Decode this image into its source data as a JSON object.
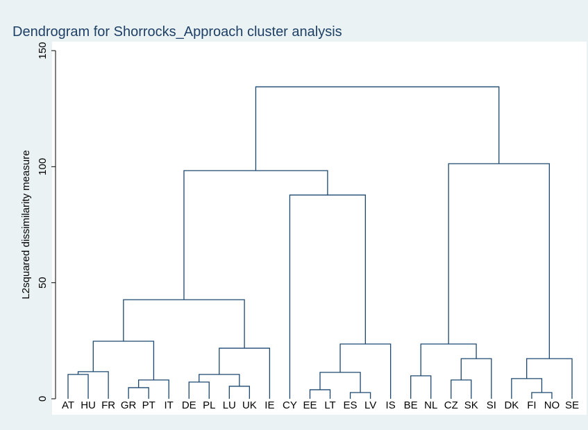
{
  "chart_data": {
    "type": "dendrogram",
    "title": "Dendrogram for Shorrocks_Approach cluster analysis",
    "y_label": "L2squared dissimilarity measure",
    "categories": [
      "AT",
      "HU",
      "FR",
      "GR",
      "PT",
      "IT",
      "DE",
      "PL",
      "LU",
      "UK",
      "IE",
      "CY",
      "EE",
      "LT",
      "ES",
      "LV",
      "IS",
      "BE",
      "NL",
      "CZ",
      "SK",
      "SI",
      "DK",
      "FI",
      "NO",
      "SE"
    ],
    "merges": [
      [
        14,
        15,
        2.7
      ],
      [
        23,
        24,
        2.7
      ],
      [
        12,
        13,
        3.9
      ],
      [
        3,
        4,
        4.8
      ],
      [
        8,
        9,
        5.4
      ],
      [
        6,
        7,
        7.2
      ],
      [
        29,
        5,
        8.1
      ],
      [
        19,
        20,
        8.1
      ],
      [
        22,
        27,
        8.7
      ],
      [
        17,
        18,
        9.9
      ],
      [
        0,
        1,
        10.5
      ],
      [
        31,
        30,
        10.5
      ],
      [
        28,
        26,
        11.4
      ],
      [
        36,
        2,
        11.7
      ],
      [
        33,
        21,
        17.3
      ],
      [
        34,
        25,
        17.3
      ],
      [
        37,
        10,
        21.8
      ],
      [
        38,
        16,
        23.6
      ],
      [
        35,
        40,
        23.6
      ],
      [
        39,
        32,
        24.8
      ],
      [
        45,
        42,
        42.7
      ],
      [
        11,
        43,
        87.8
      ],
      [
        46,
        47,
        98.3
      ],
      [
        44,
        41,
        101.3
      ],
      [
        48,
        49,
        134.4
      ]
    ],
    "color": "#1a476f",
    "ylim": [
      0,
      150
    ],
    "yticks": [
      0,
      50,
      100,
      150
    ]
  }
}
